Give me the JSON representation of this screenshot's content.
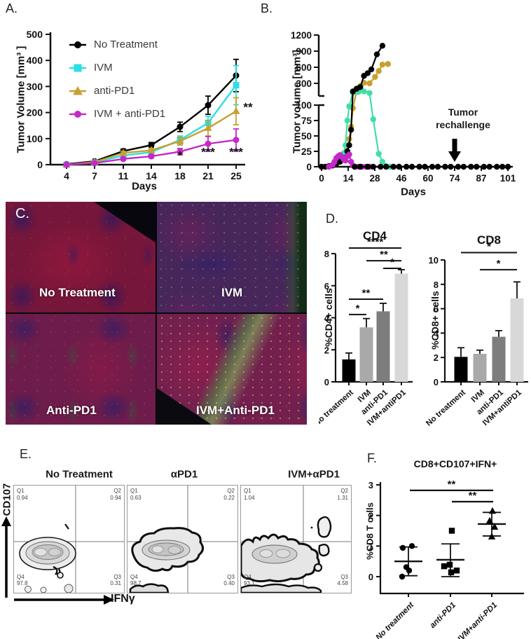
{
  "figure": {
    "panel_labels": {
      "a": "A.",
      "b": "B.",
      "c": "C.",
      "d": "D.",
      "e": "E.",
      "f": "F."
    }
  },
  "panels": {
    "a": {
      "xlabel": "Days",
      "ylabel": "Tumor Volume [mm³ ]"
    },
    "b": {
      "xlabel": "Days",
      "ylabel": "Tumor volume [mm³]",
      "annotation_line1": "Tumor",
      "annotation_line2": "rechallenge",
      "annotation_arrow_day": 74
    },
    "c": {
      "quadrants": [
        {
          "label": "No Treatment"
        },
        {
          "label": "IVM"
        },
        {
          "label": "Anti-PD1"
        },
        {
          "label": "IVM+Anti-PD1"
        }
      ]
    },
    "d": {
      "ylabel_cd4": "%CD4+ cells",
      "ylabel_cd8": "%CD8+ cells"
    },
    "e": {
      "ylabel": "CD107",
      "xlabel": "IFNγ",
      "q_names": [
        "Q1",
        "Q2",
        "Q3",
        "Q4"
      ],
      "plots": [
        {
          "title": "No Treatment",
          "q1": "0.94",
          "q2": "0.94",
          "q3": "0.31",
          "q4": "97.8"
        },
        {
          "title": "αPD1",
          "q1": "0.63",
          "q2": "0.22",
          "q3": "0.40",
          "q4": "98.7"
        },
        {
          "title": "IVM+αPD1",
          "q1": "1.04",
          "q2": "1.31",
          "q3": "4.58",
          "q4": "93.1"
        }
      ]
    },
    "f": {
      "ylabel": "%CD8 T cells"
    }
  },
  "chart_data": [
    {
      "id": "panel-a",
      "type": "line",
      "title": "",
      "xlabel": "Days",
      "ylabel": "Tumor Volume [mm³ ]",
      "categories": [
        4,
        7,
        11,
        14,
        18,
        21,
        25
      ],
      "ylim": [
        0,
        500
      ],
      "yticks": [
        0,
        100,
        200,
        300,
        400,
        500
      ],
      "legend_position": "top-left-inside",
      "grid": false,
      "series": [
        {
          "name": "No Treatment",
          "color": "#000000",
          "marker": "circle",
          "values": [
            2,
            13,
            52,
            75,
            145,
            228,
            342
          ],
          "errors": [
            5,
            5,
            8,
            10,
            18,
            35,
            62
          ]
        },
        {
          "name": "IVM",
          "color": "#2BDFE6",
          "marker": "square",
          "values": [
            0,
            8,
            35,
            48,
            95,
            160,
            305
          ],
          "errors": [
            3,
            4,
            6,
            8,
            15,
            25,
            75
          ]
        },
        {
          "name": "anti-PD1",
          "color": "#C7A02F",
          "marker": "triangle",
          "values": [
            0,
            10,
            45,
            55,
            90,
            140,
            205
          ],
          "errors": [
            3,
            4,
            6,
            8,
            15,
            30,
            52
          ]
        },
        {
          "name": "IVM + anti-PD1",
          "color": "#C428C8",
          "marker": "circle",
          "values": [
            0,
            6,
            22,
            32,
            50,
            80,
            95
          ],
          "errors": [
            3,
            3,
            5,
            6,
            12,
            28,
            42
          ]
        }
      ],
      "sig_marks": [
        {
          "text": "*",
          "xi": 4,
          "v": 20
        },
        {
          "text": "***",
          "xi": 5,
          "v": 33
        },
        {
          "text": "***",
          "xi": 6,
          "v": 33
        },
        {
          "text": "**",
          "xi": 6,
          "v": 205,
          "dx": 17
        }
      ]
    },
    {
      "id": "panel-b",
      "type": "line-broken-axis",
      "xlabel": "Days",
      "ylabel": "Tumor volume [mm³]",
      "xticks": [
        0,
        14,
        28,
        46,
        60,
        74,
        87,
        101
      ],
      "yticks_upper": [
        300,
        600,
        900,
        1200
      ],
      "yticks_lower": [
        0,
        25,
        50,
        75,
        100
      ],
      "axis_break_at": 100,
      "grid": false,
      "series": [
        {
          "name": "anti-PD1",
          "color": "#C7A02F",
          "points": [
            [
              9,
              8
            ],
            [
              11,
              15
            ],
            [
              13,
              22
            ],
            [
              15,
              45
            ],
            [
              16,
              65
            ],
            [
              17,
              95
            ],
            [
              19,
              150
            ],
            [
              21,
              250
            ],
            [
              23,
              310
            ],
            [
              26,
              300
            ],
            [
              29,
              420
            ],
            [
              31,
              530
            ],
            [
              33,
              650
            ],
            [
              36,
              660
            ]
          ]
        },
        {
          "name": "IVM",
          "color": "#3FDFA6",
          "points": [
            [
              4,
              1
            ],
            [
              6,
              3
            ],
            [
              8,
              8
            ],
            [
              10,
              15
            ],
            [
              12,
              22
            ],
            [
              13,
              35
            ],
            [
              14,
              75
            ],
            [
              15,
              98
            ],
            [
              17,
              130
            ],
            [
              20,
              140
            ],
            [
              23,
              150
            ],
            [
              26,
              120
            ],
            [
              28,
              77
            ],
            [
              31,
              21
            ],
            [
              33,
              8
            ],
            [
              35,
              1
            ],
            [
              37,
              0
            ],
            [
              39,
              0
            ]
          ]
        },
        {
          "name": "No treatment",
          "color": "#000000",
          "points": [
            [
              0,
              0
            ],
            [
              2,
              0
            ],
            [
              4,
              1
            ],
            [
              6,
              2
            ],
            [
              8,
              5
            ],
            [
              10,
              8
            ],
            [
              11,
              12
            ],
            [
              13,
              15
            ],
            [
              14,
              25
            ],
            [
              15,
              35
            ],
            [
              16,
              60
            ],
            [
              17,
              150
            ],
            [
              19,
              200
            ],
            [
              21,
              230
            ],
            [
              23,
              440
            ],
            [
              25,
              490
            ],
            [
              27,
              560
            ],
            [
              30,
              840
            ],
            [
              33,
              1000
            ]
          ]
        },
        {
          "name": "IVM + anti-PD1",
          "color": "#C428C8",
          "points": [
            [
              4,
              0
            ],
            [
              6,
              3
            ],
            [
              7,
              8
            ],
            [
              8,
              14
            ],
            [
              9,
              17
            ],
            [
              10,
              19
            ],
            [
              11,
              16
            ],
            [
              12,
              12
            ],
            [
              13,
              10
            ],
            [
              14,
              17
            ],
            [
              15,
              20
            ],
            [
              16,
              8
            ],
            [
              17,
              2
            ],
            [
              18,
              0
            ],
            [
              20,
              0
            ],
            [
              22,
              0
            ],
            [
              24,
              0
            ],
            [
              26,
              0
            ]
          ]
        },
        {
          "name": "baseline-dots (black, cured mice at 0)",
          "color": "#000000",
          "points": [
            [
              18,
              0
            ],
            [
              21,
              0
            ],
            [
              25,
              0
            ],
            [
              28,
              0
            ],
            [
              32,
              0
            ],
            [
              35,
              0
            ],
            [
              39,
              0
            ],
            [
              42,
              0
            ],
            [
              46,
              0
            ],
            [
              49,
              0
            ],
            [
              53,
              0
            ],
            [
              56,
              0
            ],
            [
              60,
              0
            ],
            [
              63,
              0
            ],
            [
              67,
              0
            ],
            [
              70,
              0
            ],
            [
              74,
              0
            ],
            [
              77,
              0
            ],
            [
              81,
              0
            ],
            [
              84,
              0
            ],
            [
              88,
              0
            ],
            [
              91,
              0
            ],
            [
              95,
              0
            ],
            [
              98,
              0
            ],
            [
              101,
              0
            ]
          ]
        }
      ]
    },
    {
      "id": "panel-d-cd4",
      "type": "bar",
      "title": "CD4",
      "ylabel": "%CD4+ cells",
      "categories": [
        "No treatment",
        "IVM",
        "anti-PD1",
        "IVM+antiPD1"
      ],
      "values": [
        1.4,
        3.4,
        4.4,
        6.75
      ],
      "errors": [
        0.4,
        0.55,
        0.5,
        0.25
      ],
      "colors": [
        "#000000",
        "#a9a9a9",
        "#7d7d7d",
        "#d8d8d8"
      ],
      "ylim": [
        0,
        8
      ],
      "yticks": [
        0,
        2,
        4,
        6,
        8
      ],
      "grid": false,
      "sig": [
        {
          "from": 0,
          "to": 3,
          "label": "****",
          "v": 8.35
        },
        {
          "from": 1,
          "to": 3,
          "label": "**",
          "v": 7.56
        },
        {
          "from": 2,
          "to": 3,
          "label": "*",
          "v": 7.08
        },
        {
          "from": 0,
          "to": 2,
          "label": "**",
          "v": 5.16
        },
        {
          "from": 0,
          "to": 1,
          "label": "*",
          "v": 4.2
        }
      ]
    },
    {
      "id": "panel-d-cd8",
      "type": "bar",
      "title": "CD8",
      "ylabel": "%CD8+ cells",
      "categories": [
        "No treatment",
        "IVM",
        "anti-PD1",
        "IVM+antiPD1"
      ],
      "values": [
        2.05,
        2.3,
        3.7,
        6.85
      ],
      "errors": [
        0.75,
        0.3,
        0.5,
        1.35
      ],
      "colors": [
        "#000000",
        "#a9a9a9",
        "#7d7d7d",
        "#d8d8d8"
      ],
      "ylim": [
        0,
        10
      ],
      "yticks": [
        0,
        2,
        4,
        6,
        8,
        10
      ],
      "grid": false,
      "sig": [
        {
          "from": 0,
          "to": 3,
          "label": "*",
          "v": 10.6
        },
        {
          "from": 1,
          "to": 3,
          "label": "*",
          "v": 9.2
        }
      ]
    },
    {
      "id": "panel-f",
      "type": "scatter",
      "title": "CD8+CD107+IFN+",
      "ylabel": "%CD8 T cells",
      "ylim": [
        0,
        3
      ],
      "yticks": [
        0,
        1,
        2,
        3
      ],
      "grid": false,
      "groups": [
        {
          "name": "No treatment",
          "marker": "circle",
          "color": "#000000",
          "points": [
            [
              0.94,
              -8
            ],
            [
              1.0,
              5
            ],
            [
              0.31,
              -3
            ],
            [
              0.2,
              1
            ],
            [
              0.0,
              -9
            ]
          ],
          "mean": 0.5,
          "err_lo": 0.03,
          "err_hi": 0.97
        },
        {
          "name": "anti-PD1",
          "marker": "square",
          "color": "#000000",
          "points": [
            [
              1.5,
              2
            ],
            [
              0.34,
              -9
            ],
            [
              0.39,
              -1
            ],
            [
              0.14,
              1
            ],
            [
              0.2,
              9
            ]
          ],
          "mean": 0.55,
          "err_lo": 0.0,
          "err_hi": 1.07
        },
        {
          "name": "IVM+anti-PD1",
          "marker": "triangle",
          "color": "#000000",
          "points": [
            [
              2.14,
              1
            ],
            [
              1.82,
              -3
            ],
            [
              1.62,
              4
            ],
            [
              1.3,
              0
            ]
          ],
          "mean": 1.72,
          "err_lo": 1.33,
          "err_hi": 2.1
        }
      ],
      "sig": [
        {
          "from": 0,
          "to": 2,
          "label": "**",
          "v": 2.82
        },
        {
          "from": 1,
          "to": 2,
          "label": "**",
          "v": 2.45
        }
      ]
    }
  ]
}
